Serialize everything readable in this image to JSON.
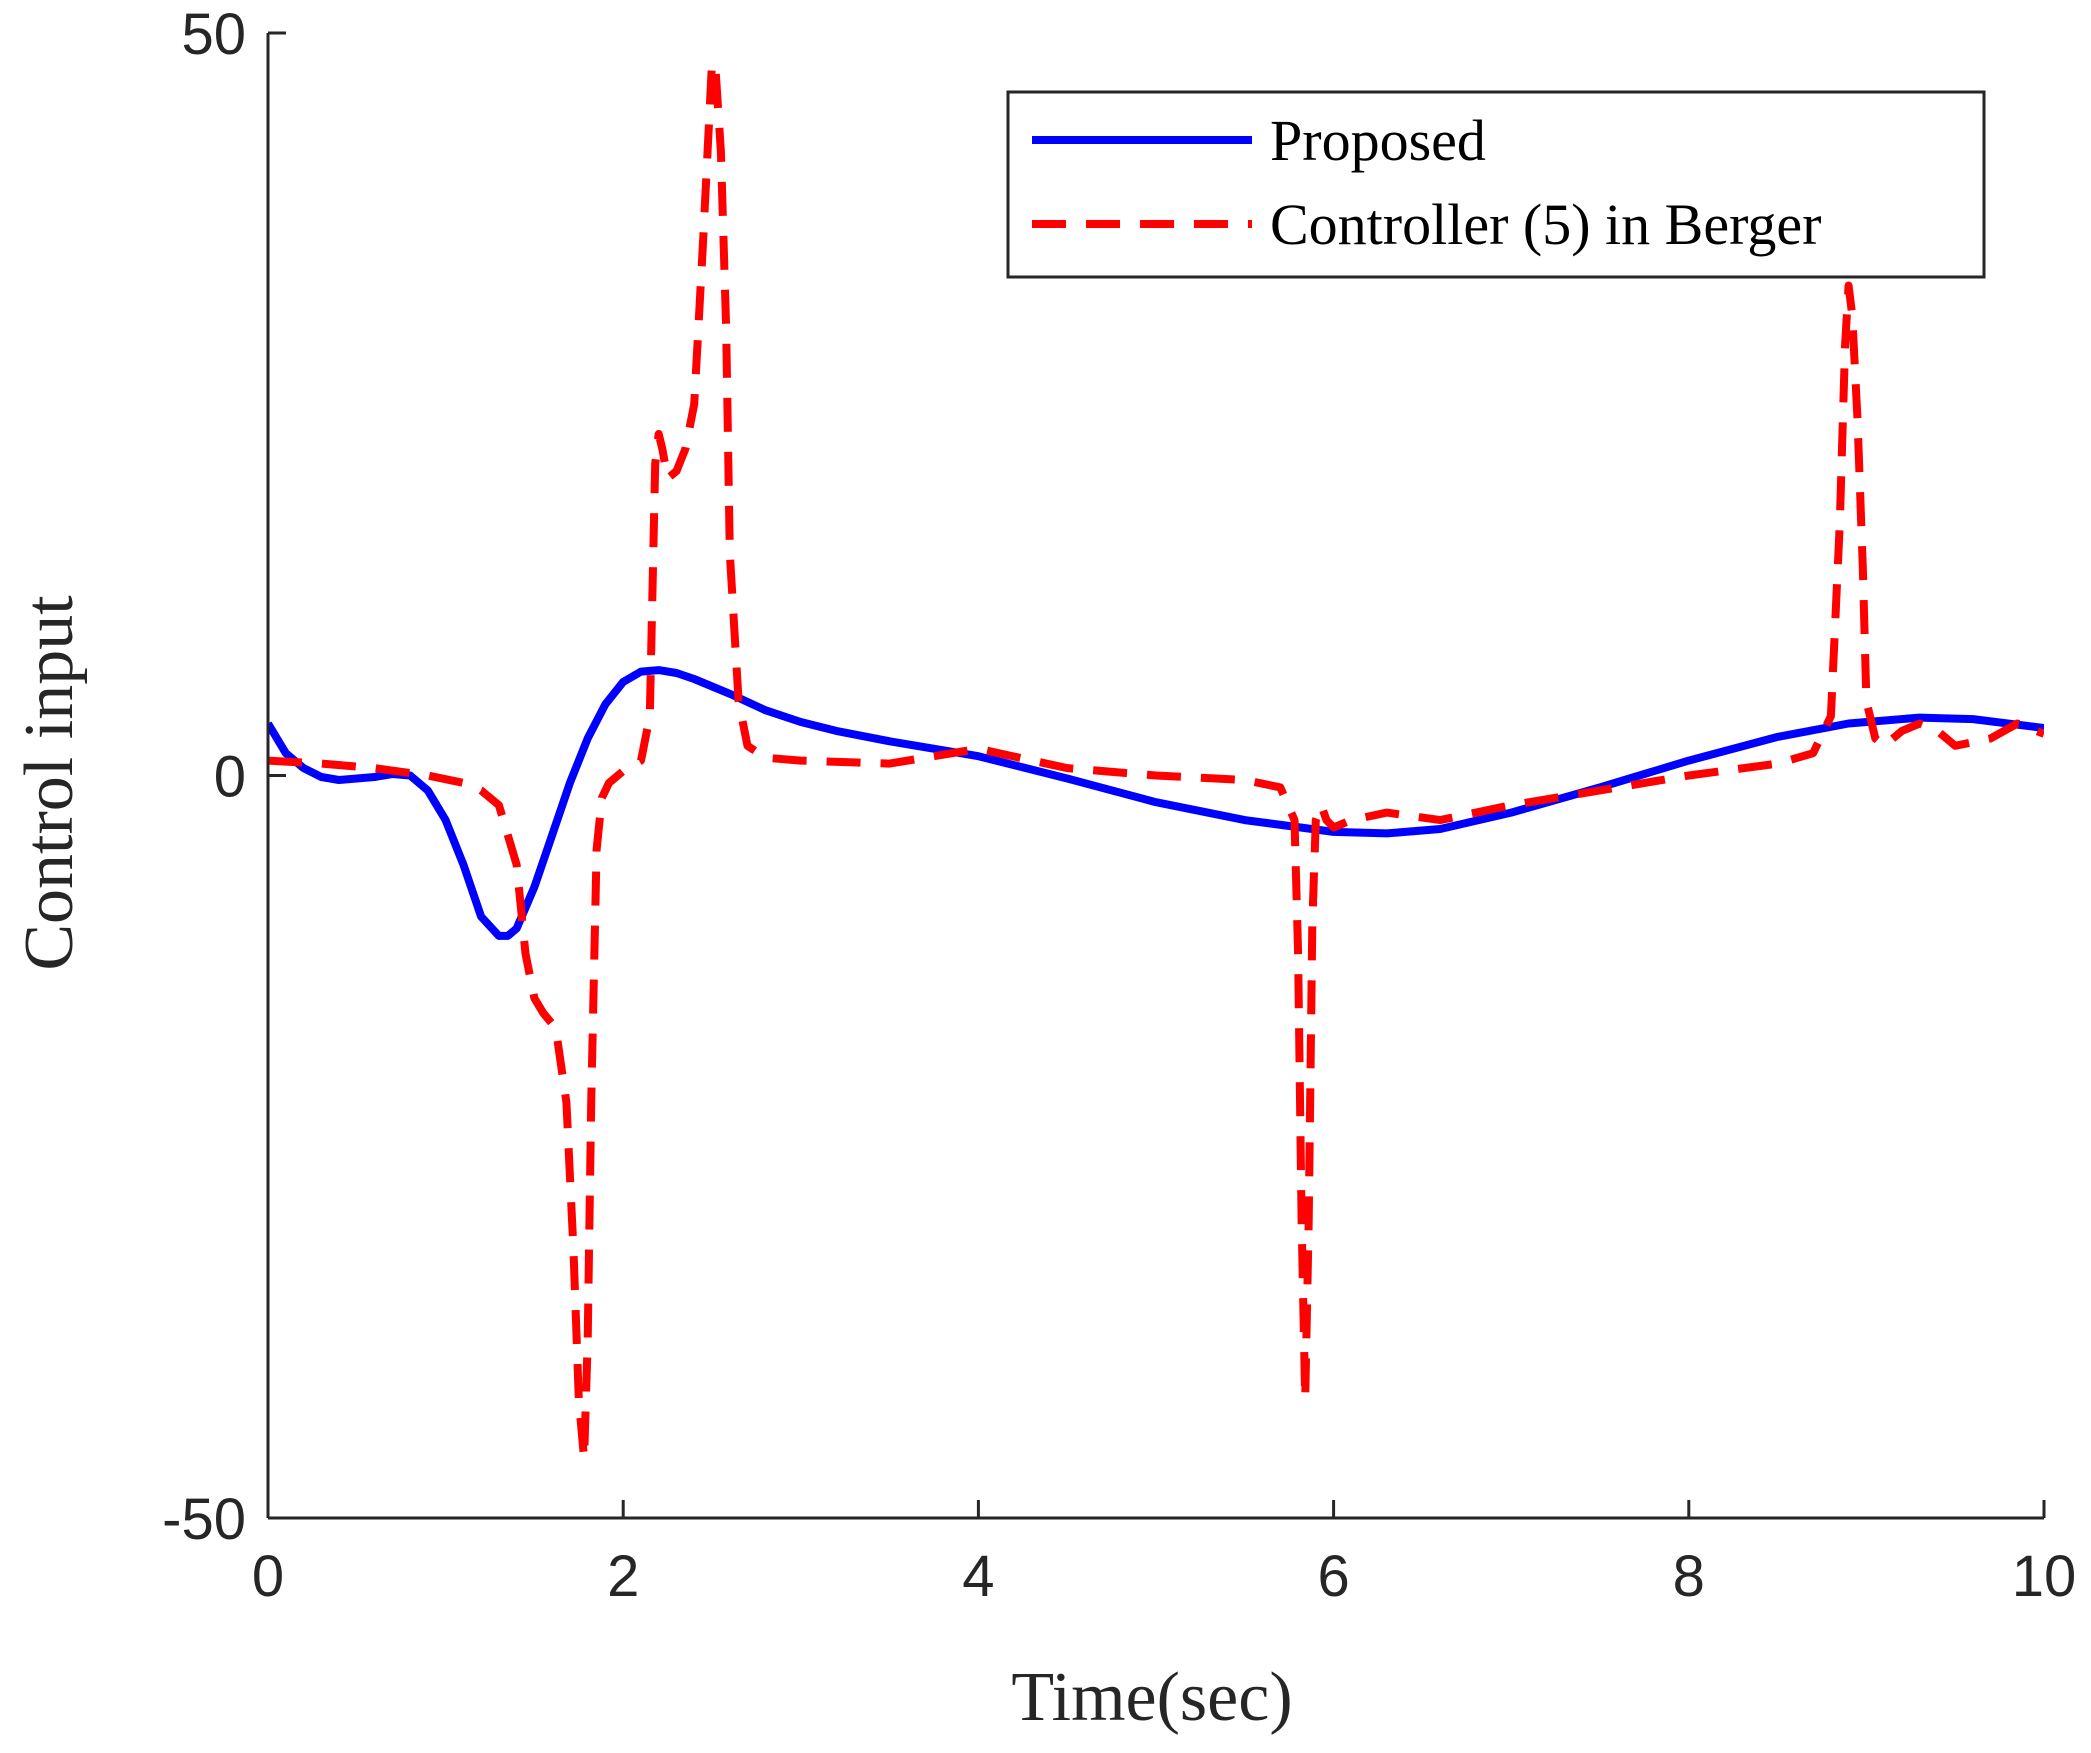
{
  "chart_data": {
    "type": "line",
    "title": "",
    "xlabel": "Time(sec)",
    "ylabel": "Control input",
    "xlim": [
      0,
      10
    ],
    "ylim": [
      -50,
      50
    ],
    "xticks": [
      0,
      2,
      4,
      6,
      8,
      10
    ],
    "yticks": [
      -50,
      0,
      50
    ],
    "xtick_labels": [
      "0",
      "2",
      "4",
      "6",
      "8",
      "10"
    ],
    "ytick_labels": [
      "-50",
      "0",
      "50"
    ],
    "grid": false,
    "legend_position": "top-right",
    "series": [
      {
        "name": "Proposed",
        "color": "#0000ff",
        "style": "solid",
        "x": [
          0,
          0.1,
          0.2,
          0.3,
          0.4,
          0.5,
          0.6,
          0.7,
          0.8,
          0.9,
          1.0,
          1.1,
          1.2,
          1.3,
          1.35,
          1.4,
          1.5,
          1.6,
          1.7,
          1.8,
          1.9,
          2.0,
          2.1,
          2.2,
          2.3,
          2.4,
          2.6,
          2.8,
          3.0,
          3.2,
          3.5,
          4.0,
          4.5,
          5.0,
          5.5,
          6.0,
          6.3,
          6.6,
          7.0,
          7.5,
          8.0,
          8.5,
          8.9,
          9.3,
          9.6,
          10.0
        ],
        "y": [
          3.5,
          1.5,
          0.5,
          -0.1,
          -0.3,
          -0.2,
          -0.1,
          0.1,
          0.0,
          -1.0,
          -3.0,
          -6.0,
          -9.5,
          -10.8,
          -10.8,
          -10.3,
          -7.5,
          -4.0,
          -0.5,
          2.5,
          4.8,
          6.3,
          7.0,
          7.1,
          6.9,
          6.5,
          5.5,
          4.4,
          3.6,
          3.0,
          2.3,
          1.3,
          -0.2,
          -1.8,
          -3.0,
          -3.8,
          -3.9,
          -3.6,
          -2.5,
          -0.8,
          1.0,
          2.6,
          3.5,
          3.9,
          3.8,
          3.2
        ]
      },
      {
        "name": "Controller (5) in Berger",
        "color": "#ff0000",
        "style": "dashed",
        "x": [
          0,
          0.3,
          0.6,
          0.9,
          1.1,
          1.2,
          1.3,
          1.4,
          1.45,
          1.5,
          1.55,
          1.62,
          1.68,
          1.72,
          1.75,
          1.78,
          1.8,
          1.82,
          1.85,
          1.88,
          1.92,
          2.0,
          2.1,
          2.15,
          2.18,
          2.2,
          2.22,
          2.25,
          2.3,
          2.35,
          2.4,
          2.45,
          2.5,
          2.52,
          2.55,
          2.58,
          2.6,
          2.65,
          2.7,
          2.8,
          3.0,
          3.5,
          4.0,
          4.5,
          5.0,
          5.5,
          5.7,
          5.78,
          5.8,
          5.82,
          5.84,
          5.86,
          5.88,
          5.9,
          5.93,
          5.96,
          6.0,
          6.1,
          6.3,
          6.6,
          7.0,
          7.5,
          8.0,
          8.5,
          8.7,
          8.8,
          8.85,
          8.88,
          8.9,
          8.92,
          8.95,
          8.98,
          9.0,
          9.05,
          9.1,
          9.2,
          9.3,
          9.4,
          9.5,
          9.7,
          9.85,
          10.0
        ],
        "y": [
          1.0,
          0.8,
          0.5,
          0.0,
          -0.5,
          -1.0,
          -2.0,
          -6.0,
          -12.0,
          -15.0,
          -16.0,
          -17.0,
          -22.0,
          -32.0,
          -42.0,
          -46.0,
          -38.0,
          -22.0,
          -5.0,
          -1.5,
          -0.5,
          0.3,
          1.0,
          4.0,
          21.0,
          23.0,
          22.0,
          20.0,
          20.5,
          22.0,
          25.0,
          36.0,
          48.0,
          47.5,
          42.0,
          30.0,
          15.0,
          5.0,
          2.0,
          1.2,
          1.0,
          0.8,
          1.8,
          0.5,
          0.0,
          -0.3,
          -0.8,
          -3.0,
          -12.0,
          -30.0,
          -42.0,
          -30.0,
          -10.0,
          -3.0,
          -2.0,
          -3.0,
          -3.5,
          -3.0,
          -2.5,
          -3.0,
          -2.0,
          -1.0,
          0.0,
          0.8,
          1.5,
          4.0,
          17.0,
          29.0,
          33.0,
          31.0,
          24.0,
          14.0,
          5.0,
          2.5,
          2.0,
          3.0,
          3.5,
          3.0,
          2.0,
          2.5,
          3.5,
          2.8
        ]
      }
    ]
  }
}
